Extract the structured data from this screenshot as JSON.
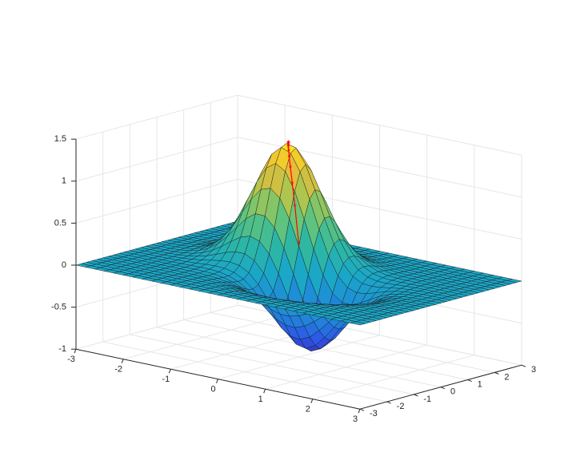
{
  "chart_data": {
    "type": "surface",
    "title": "",
    "xlabel": "",
    "ylabel": "",
    "zlabel": "",
    "xlim": [
      -3,
      3
    ],
    "ylim": [
      -3,
      3
    ],
    "zlim": [
      -1,
      1.5
    ],
    "x_ticks": [
      "-3",
      "-2",
      "-1",
      "0",
      "1",
      "2",
      "3"
    ],
    "y_ticks": [
      "-3",
      "-2",
      "-1",
      "0",
      "1",
      "2",
      "3"
    ],
    "z_ticks": [
      "-1",
      "-0.5",
      "0",
      "0.5",
      "1",
      "1.5"
    ],
    "grid": true,
    "surface": {
      "function": "z = 1.5*exp(-((x+0.5)^2+(y-0.5)^2)/0.8) - 0.9*exp(-((x-0.5)^2+(y+0.5)^2)/0.8)",
      "grid_step": 0.2,
      "colormap": [
        "#3e26a8",
        "#2c57e8",
        "#1f8ad8",
        "#1aa7c8",
        "#2eb7a3",
        "#64c57a",
        "#b1c54d",
        "#f0bb36",
        "#f9fb0e"
      ]
    },
    "path_series": {
      "color": "#ff0000",
      "marker": "*",
      "points": [
        {
          "x": 0.0,
          "y": 0.0
        },
        {
          "x": -0.15,
          "y": 0.12
        },
        {
          "x": -0.25,
          "y": 0.2
        },
        {
          "x": -0.33,
          "y": 0.27
        },
        {
          "x": -0.39,
          "y": 0.33
        },
        {
          "x": -0.43,
          "y": 0.38
        },
        {
          "x": -0.46,
          "y": 0.42
        },
        {
          "x": -0.48,
          "y": 0.45
        },
        {
          "x": -0.49,
          "y": 0.47
        },
        {
          "x": -0.5,
          "y": 0.49
        },
        {
          "x": -0.5,
          "y": 0.5
        }
      ]
    }
  }
}
